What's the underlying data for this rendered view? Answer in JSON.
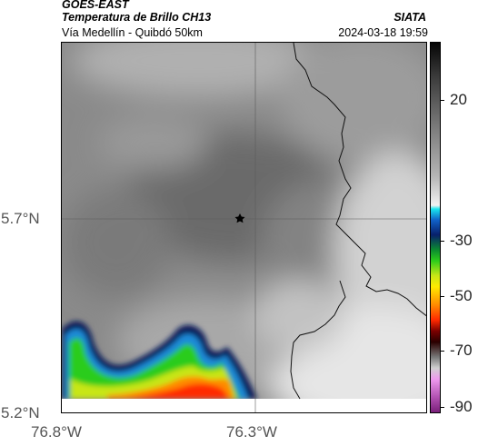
{
  "header": {
    "satellite": "GOES-EAST",
    "product": "Temperatura de Brillo CH13",
    "organization": "SIATA",
    "route": "Vía Medellín - Quibdó 50km",
    "timestamp": "2024-03-18 19:59"
  },
  "map": {
    "lat_labels": [
      "5.7°N",
      "5.2°N"
    ],
    "lon_labels": [
      "76.8°W",
      "76.3°W"
    ],
    "marker_icon": "star-icon"
  },
  "colorbar": {
    "tick_labels": [
      "20",
      "-30",
      "-50",
      "-70",
      "-90"
    ],
    "colors": {
      "cold_top": "#050505",
      "warm_gray": "#b5b5b5",
      "cyan": "#19e6ee",
      "blue": "#08206a",
      "green": "#2ccc1a",
      "yellow": "#ffea00",
      "red": "#ff2a00",
      "magenta": "#b050b0"
    }
  }
}
